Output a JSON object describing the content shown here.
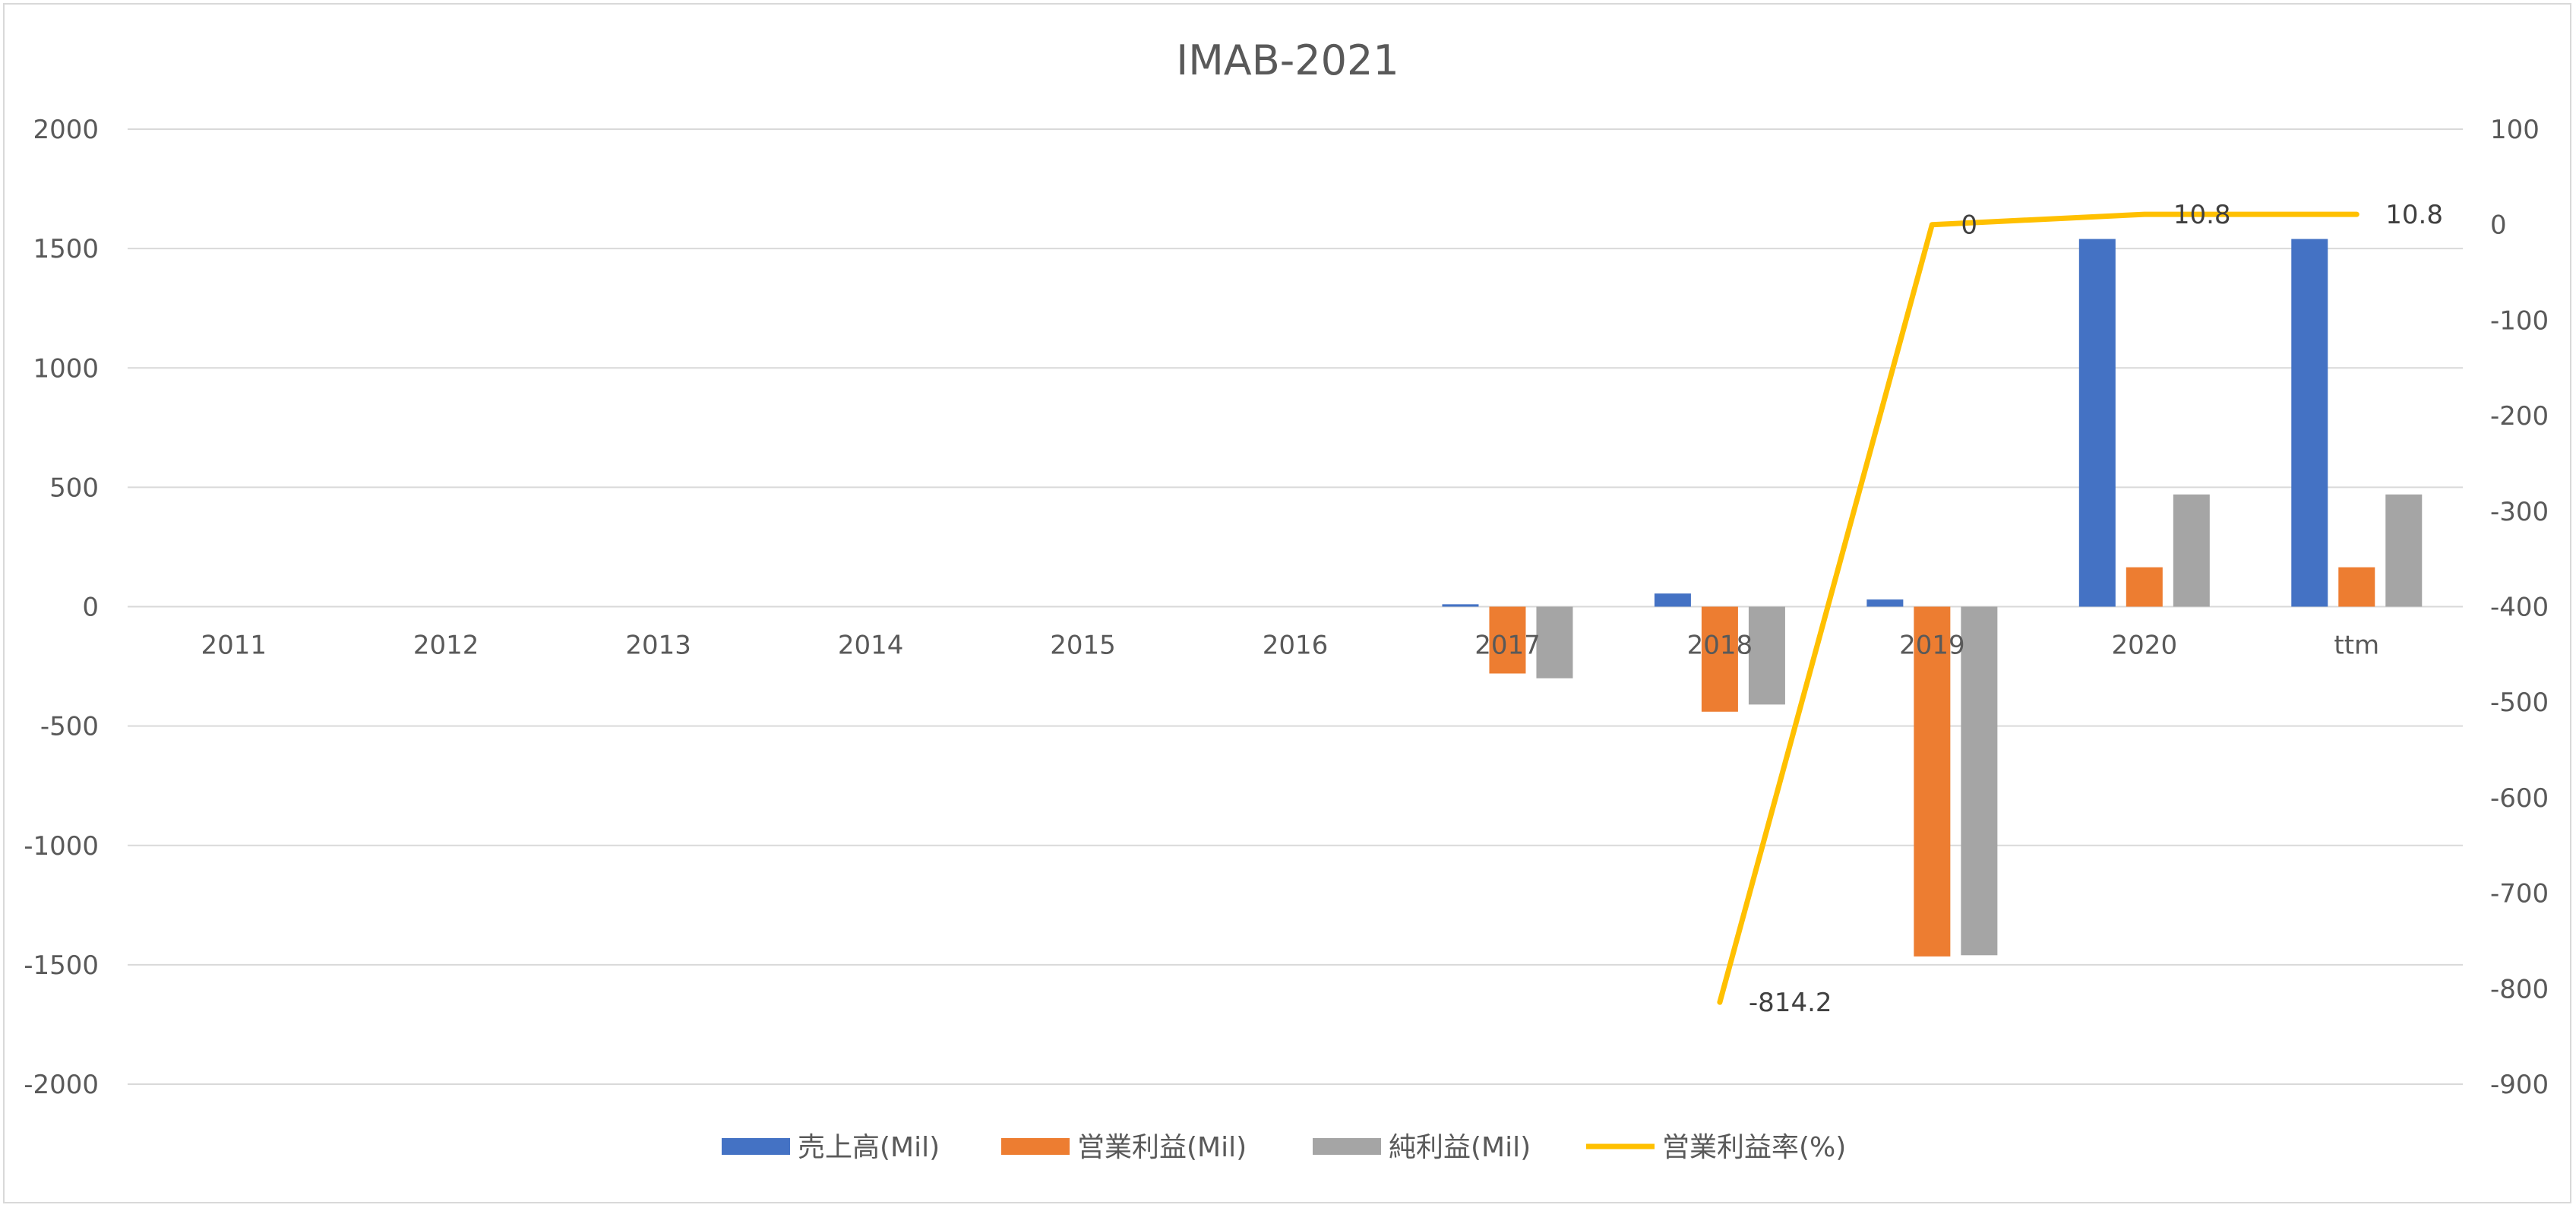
{
  "chart_data": {
    "type": "bar",
    "title": "IMAB-2021",
    "categories": [
      "2011",
      "2012",
      "2013",
      "2014",
      "2015",
      "2016",
      "2017",
      "2018",
      "2019",
      "2020",
      "ttm"
    ],
    "y_left": {
      "min": -2000,
      "max": 2000,
      "step": 500,
      "ticks": [
        "2000",
        "1500",
        "1000",
        "500",
        "0",
        "-500",
        "-1000",
        "-1500",
        "-2000"
      ]
    },
    "y_right": {
      "min": -900,
      "max": 100,
      "step": 100,
      "ticks": [
        "100",
        "0",
        "-100",
        "-200",
        "-300",
        "-400",
        "-500",
        "-600",
        "-700",
        "-800",
        "-900"
      ]
    },
    "series": [
      {
        "name": "売上高(Mil)",
        "axis": "left",
        "kind": "bar",
        "color": "#4472C4",
        "values": [
          null,
          null,
          null,
          null,
          null,
          null,
          10,
          55,
          30,
          1540,
          1540
        ]
      },
      {
        "name": "営業利益(Mil)",
        "axis": "left",
        "kind": "bar",
        "color": "#ED7D31",
        "values": [
          null,
          null,
          null,
          null,
          null,
          null,
          -280,
          -440,
          -1465,
          165,
          165
        ]
      },
      {
        "name": "純利益(Mil)",
        "axis": "left",
        "kind": "bar",
        "color": "#A5A5A5",
        "values": [
          null,
          null,
          null,
          null,
          null,
          null,
          -300,
          -410,
          -1460,
          470,
          470
        ]
      },
      {
        "name": "営業利益率(%)",
        "axis": "right",
        "kind": "line",
        "color": "#FFC000",
        "values": [
          null,
          null,
          null,
          null,
          null,
          null,
          null,
          -814.2,
          0,
          10.8,
          10.8
        ],
        "labels": [
          null,
          null,
          null,
          null,
          null,
          null,
          null,
          "-814.2",
          "0",
          "10.8",
          "10.8"
        ]
      }
    ],
    "legend_position": "bottom",
    "grid": true
  }
}
